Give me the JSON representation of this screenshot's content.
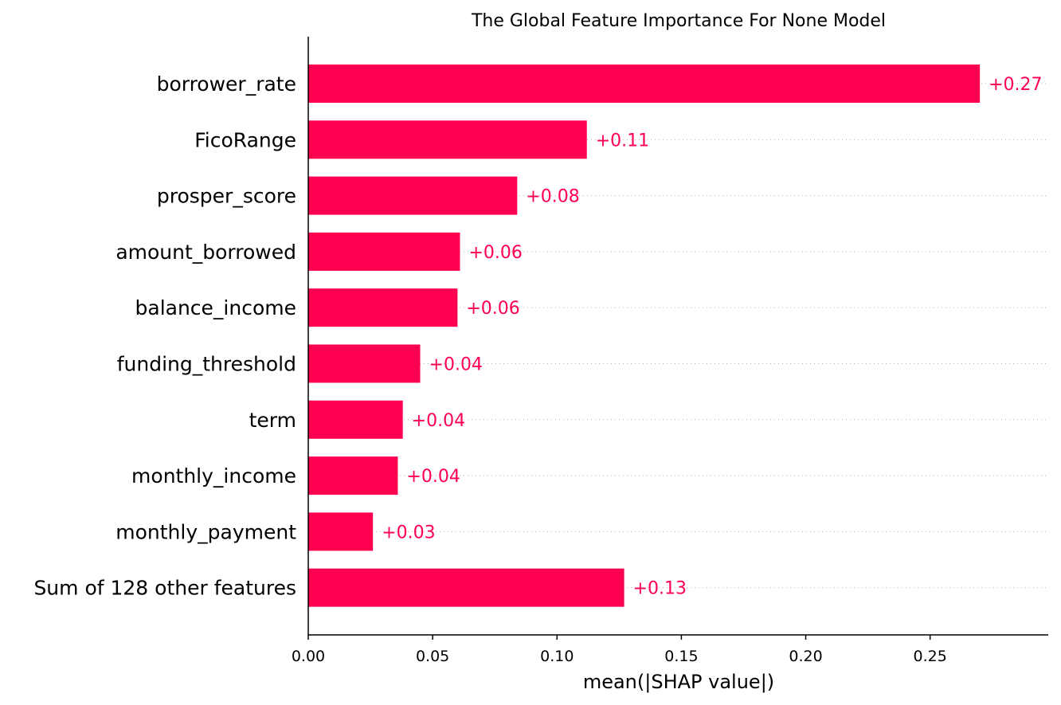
{
  "chart_data": {
    "type": "bar",
    "orientation": "horizontal",
    "title": "The Global Feature Importance For None Model",
    "xlabel": "mean(|SHAP value|)",
    "ylabel": "",
    "xlim": [
      0.0,
      0.2975
    ],
    "xticks": [
      0.0,
      0.05,
      0.1,
      0.15,
      0.2,
      0.25
    ],
    "xtick_labels": [
      "0.00",
      "0.05",
      "0.10",
      "0.15",
      "0.20",
      "0.25"
    ],
    "categories": [
      "borrower_rate",
      "FicoRange",
      "prosper_score",
      "amount_borrowed",
      "balance_income",
      "funding_threshold",
      "term",
      "monthly_income",
      "monthly_payment",
      "Sum of 128 other features"
    ],
    "values": [
      0.27,
      0.112,
      0.084,
      0.061,
      0.06,
      0.045,
      0.038,
      0.036,
      0.026,
      0.127
    ],
    "value_labels": [
      "+0.27",
      "+0.11",
      "+0.08",
      "+0.06",
      "+0.06",
      "+0.04",
      "+0.04",
      "+0.04",
      "+0.03",
      "+0.13"
    ],
    "bar_color": "#ff0051",
    "grid": "dotted horizontal guide lines per bar",
    "legend": "none"
  }
}
